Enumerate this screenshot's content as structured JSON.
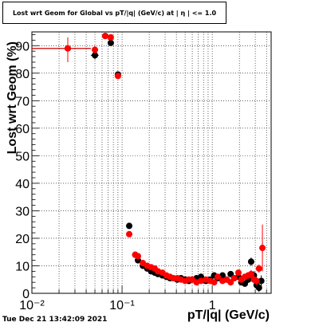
{
  "title": "Lost wrt Geom for Global vs pT/|q| (GeV/c) at | η | <= 1.0",
  "timestamp": "Tue Dec 21 13:42:09 2021",
  "chart_data": {
    "type": "scatter",
    "xlabel": "pT/|q| (GeV/c)",
    "ylabel": "Lost wrt Geom (%)",
    "x_scale": "log",
    "xlim": [
      0.01,
      4.5
    ],
    "ylim": [
      0,
      95
    ],
    "grid": true,
    "x_tick_labels": [
      "10⁻²",
      "10⁻¹",
      "1"
    ],
    "y_tick_labels": [
      "0",
      "10",
      "20",
      "30",
      "40",
      "50",
      "60",
      "70",
      "80",
      "90"
    ],
    "colors": {
      "series_black": "#000000",
      "series_red": "#ff0000"
    },
    "series": [
      {
        "color": "#000000",
        "x": [
          0.025,
          0.05,
          0.065,
          0.075,
          0.09,
          0.12,
          0.14,
          0.15,
          0.17,
          0.19,
          0.21,
          0.23,
          0.25,
          0.28,
          0.31,
          0.34,
          0.37,
          0.41,
          0.45,
          0.5,
          0.55,
          0.6,
          0.67,
          0.75,
          0.85,
          0.95,
          1.05,
          1.15,
          1.3,
          1.45,
          1.6,
          1.75,
          1.95,
          2.1,
          2.3,
          2.5,
          2.7,
          2.9,
          3.1,
          3.3,
          3.5
        ],
        "y": [
          89.0,
          86.5,
          93.5,
          91.0,
          79.5,
          24.5,
          14.0,
          12.0,
          10.0,
          9.0,
          8.0,
          7.5,
          7.0,
          6.5,
          6.0,
          5.5,
          5.5,
          5.0,
          5.5,
          5.0,
          4.5,
          5.0,
          5.5,
          6.0,
          4.5,
          5.0,
          6.5,
          5.5,
          6.5,
          5.0,
          7.0,
          5.5,
          6.0,
          4.0,
          3.5,
          5.0,
          11.5,
          6.5,
          3.0,
          2.0,
          4.5
        ],
        "yerr": [
          2.5,
          1.5,
          1.0,
          1.2,
          1.0,
          1.0,
          0.8,
          0.6,
          0.5,
          0.5,
          0.4,
          0.4,
          0.4,
          0.4,
          0.4,
          0.4,
          0.4,
          0.4,
          0.4,
          0.4,
          0.4,
          0.4,
          0.5,
          0.5,
          0.5,
          0.5,
          0.6,
          0.6,
          0.7,
          0.7,
          0.8,
          0.8,
          0.9,
          1.0,
          1.0,
          1.2,
          1.5,
          1.5,
          1.5,
          1.5,
          2.0
        ]
      },
      {
        "color": "#ff0000",
        "x": [
          0.025,
          0.05,
          0.065,
          0.075,
          0.09,
          0.12,
          0.14,
          0.15,
          0.17,
          0.19,
          0.21,
          0.23,
          0.25,
          0.28,
          0.31,
          0.34,
          0.37,
          0.41,
          0.45,
          0.5,
          0.55,
          0.6,
          0.67,
          0.75,
          0.85,
          0.95,
          1.05,
          1.15,
          1.3,
          1.45,
          1.6,
          1.75,
          1.95,
          2.1,
          2.3,
          2.5,
          2.7,
          2.9,
          3.1,
          3.3,
          3.6
        ],
        "y": [
          89.0,
          88.5,
          93.5,
          93.0,
          79.0,
          21.5,
          14.0,
          13.5,
          11.0,
          10.0,
          9.5,
          9.0,
          8.0,
          7.5,
          6.5,
          6.0,
          5.5,
          5.5,
          5.0,
          4.5,
          5.0,
          5.0,
          4.0,
          4.5,
          5.0,
          4.5,
          4.0,
          6.0,
          4.5,
          5.0,
          4.0,
          5.5,
          7.5,
          5.0,
          6.0,
          6.5,
          7.0,
          5.0,
          4.5,
          9.0,
          16.5
        ]
      }
    ]
  }
}
